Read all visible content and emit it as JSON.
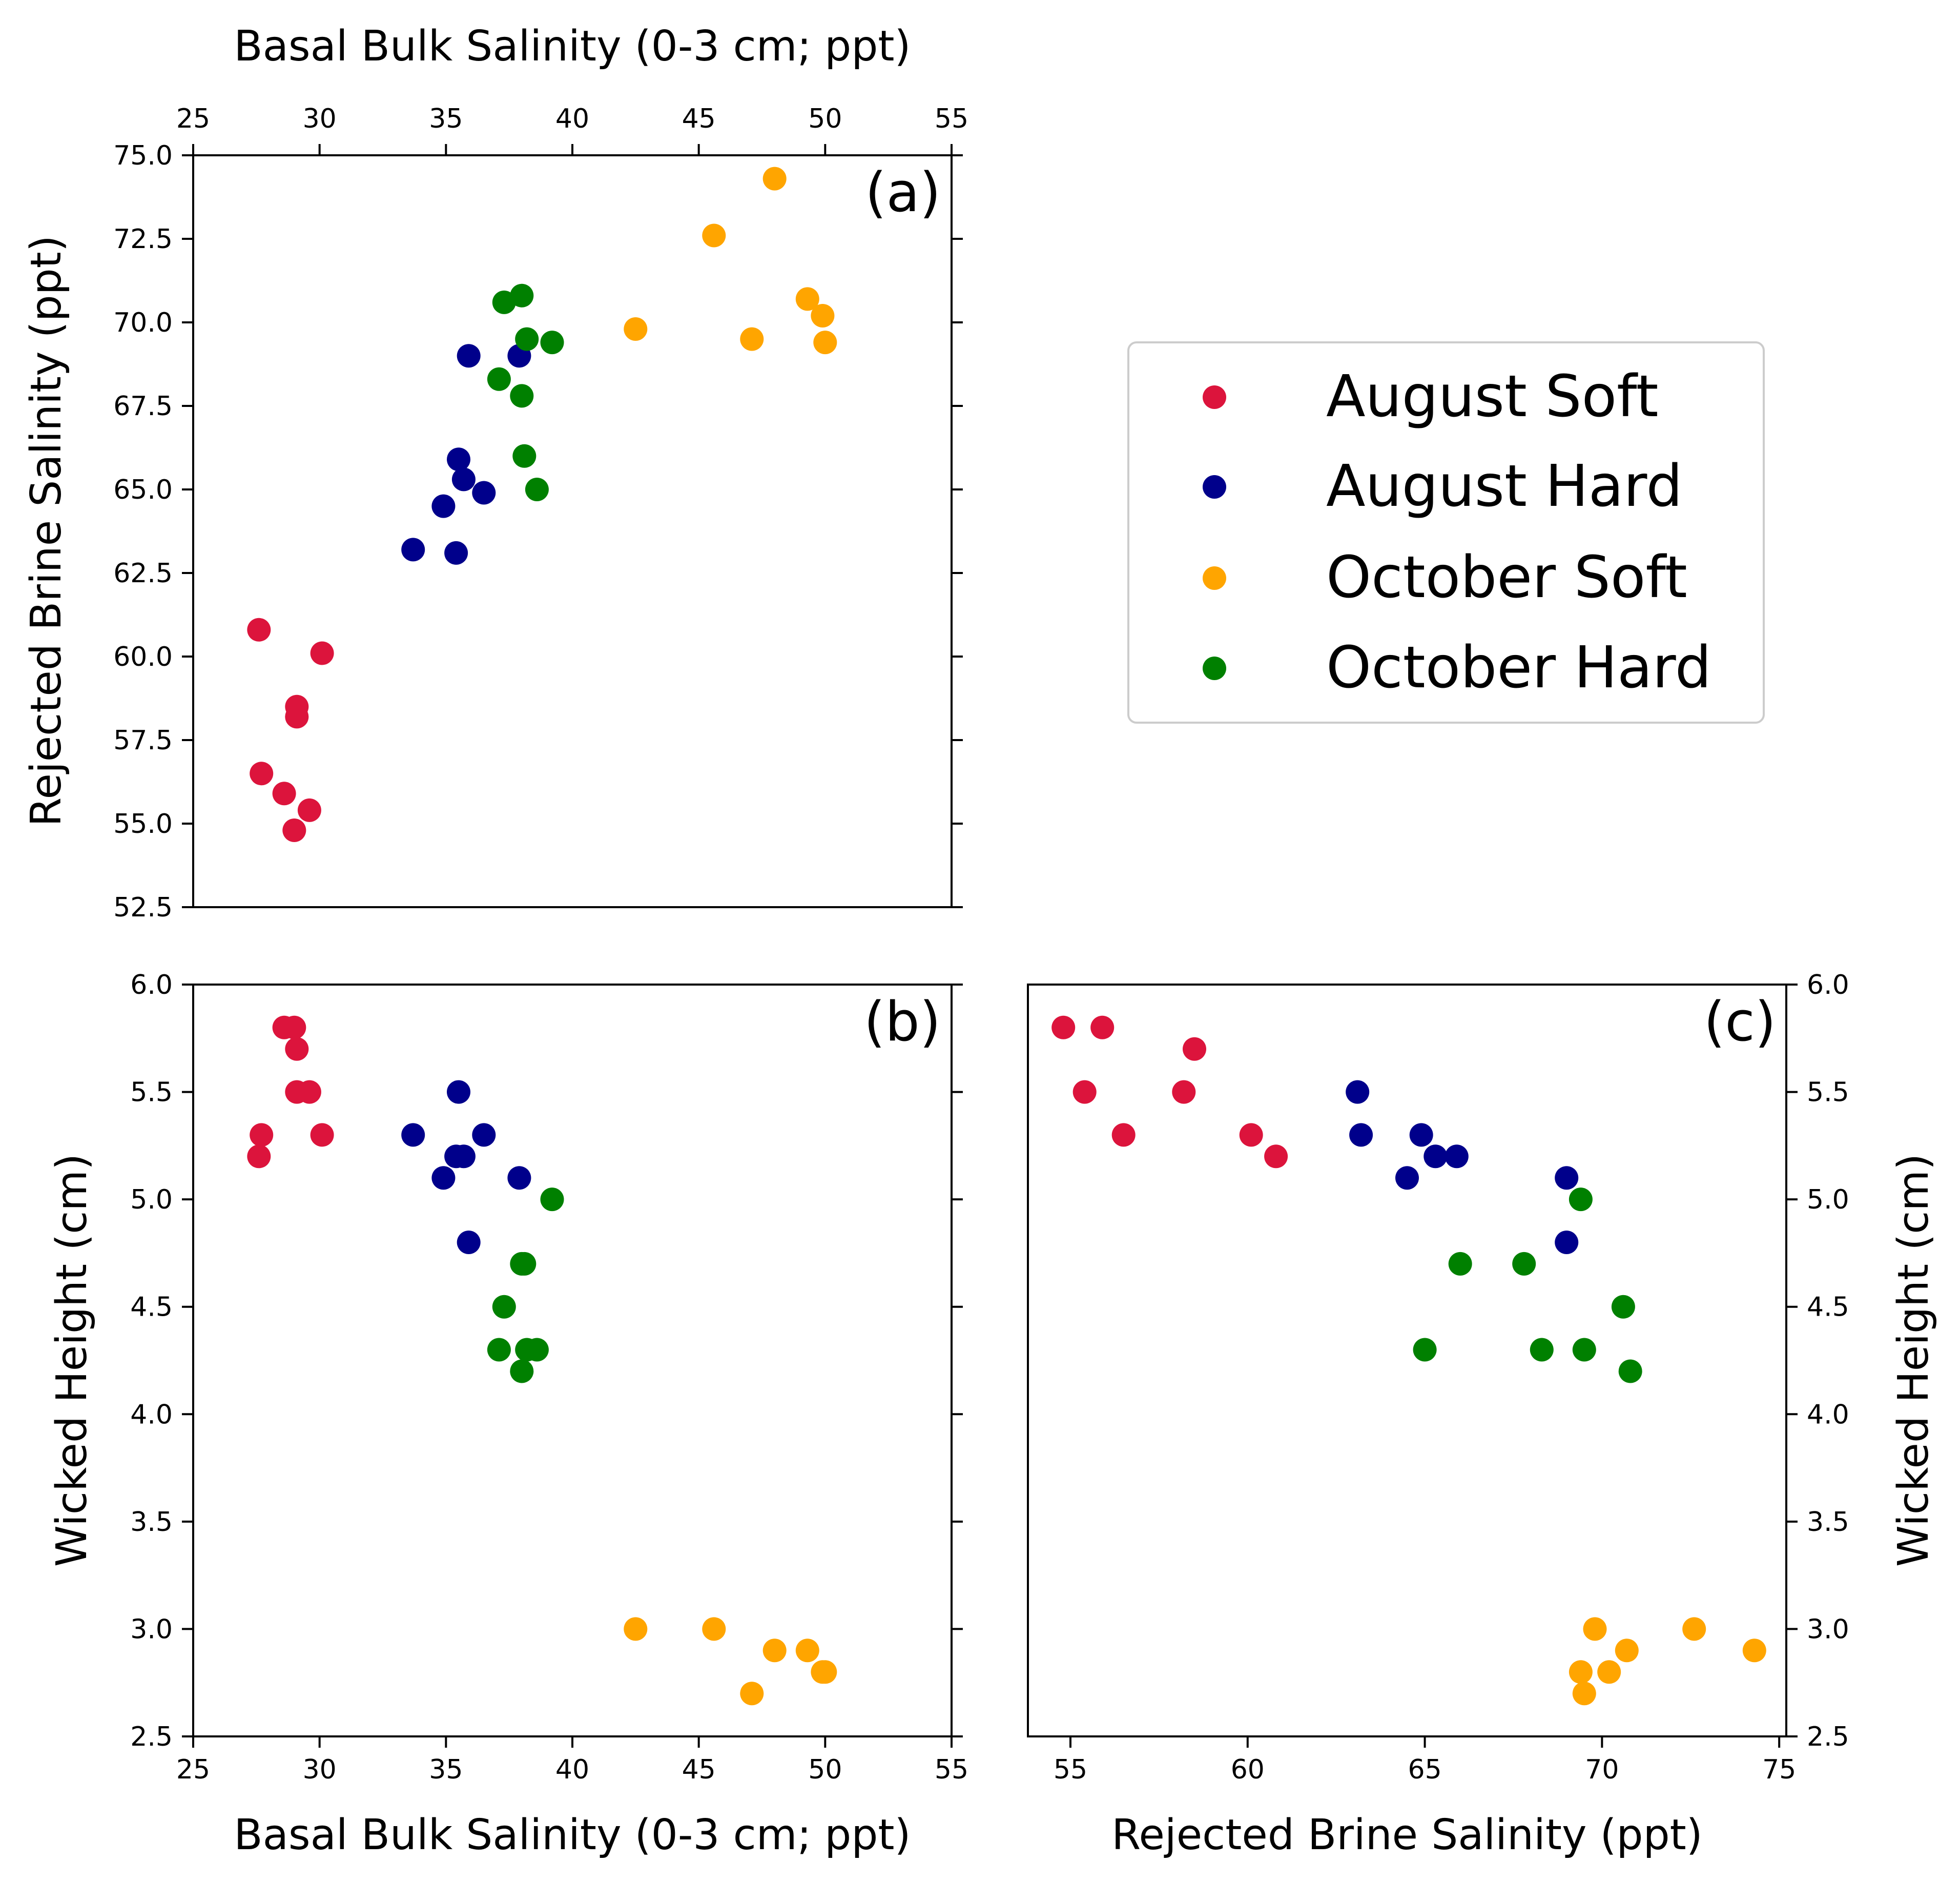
{
  "colors": {
    "August Soft": "#dc143c",
    "August Hard": "#00008b",
    "October Soft": "#ffa500",
    "October Hard": "#008000"
  },
  "legend": {
    "placement": "right of panel (a)",
    "entries": [
      "August Soft",
      "August Hard",
      "October Soft",
      "October Hard"
    ]
  },
  "chart_data": [
    {
      "panel": "(a)",
      "type": "scatter",
      "xlabel": "Basal Bulk Salinity (0-3 cm; ppt)",
      "xlabel_position": "top",
      "ylabel": "Rejected Brine Salinity (ppt)",
      "xlim": [
        25,
        55
      ],
      "ylim": [
        52.5,
        75.0
      ],
      "xticks": [
        "25",
        "30",
        "35",
        "40",
        "45",
        "50",
        "55"
      ],
      "yticks": [
        "52.5",
        "55.0",
        "57.5",
        "60.0",
        "62.5",
        "65.0",
        "67.5",
        "70.0",
        "72.5",
        "75.0"
      ],
      "grid": false,
      "series": [
        {
          "name": "August Soft",
          "x": [
            27.6,
            27.7,
            28.6,
            29.1,
            29.1,
            29.0,
            29.6,
            30.1
          ],
          "y": [
            60.8,
            56.5,
            55.9,
            58.5,
            58.2,
            54.8,
            55.4,
            60.1
          ]
        },
        {
          "name": "August Hard",
          "x": [
            33.7,
            34.9,
            35.4,
            35.5,
            35.7,
            35.9,
            36.5,
            37.9
          ],
          "y": [
            63.2,
            64.5,
            63.1,
            65.9,
            65.3,
            69.0,
            64.9,
            69.0
          ]
        },
        {
          "name": "October Soft",
          "x": [
            42.5,
            45.6,
            47.1,
            48.0,
            49.3,
            49.9,
            50.0
          ],
          "y": [
            69.8,
            72.6,
            69.5,
            74.3,
            70.7,
            70.2,
            69.4
          ]
        },
        {
          "name": "October Hard",
          "x": [
            37.1,
            37.3,
            38.0,
            38.0,
            38.1,
            38.2,
            38.6,
            39.2
          ],
          "y": [
            68.3,
            70.6,
            70.8,
            67.8,
            66.0,
            69.5,
            65.0,
            69.4
          ]
        }
      ]
    },
    {
      "panel": "(b)",
      "type": "scatter",
      "xlabel": "Basal Bulk Salinity (0-3 cm; ppt)",
      "ylabel": "Wicked Height (cm)",
      "xlim": [
        25,
        55
      ],
      "ylim": [
        2.5,
        6.0
      ],
      "xticks": [
        "25",
        "30",
        "35",
        "40",
        "45",
        "50",
        "55"
      ],
      "yticks": [
        "2.5",
        "3.0",
        "3.5",
        "4.0",
        "4.5",
        "5.0",
        "5.5",
        "6.0"
      ],
      "grid": false,
      "series": [
        {
          "name": "August Soft",
          "x": [
            27.6,
            27.7,
            28.6,
            29.0,
            29.1,
            29.1,
            29.6,
            30.1
          ],
          "y": [
            5.2,
            5.3,
            5.8,
            5.8,
            5.7,
            5.5,
            5.5,
            5.3
          ]
        },
        {
          "name": "August Hard",
          "x": [
            33.7,
            34.9,
            35.4,
            35.5,
            35.7,
            35.9,
            36.5,
            37.9
          ],
          "y": [
            5.3,
            5.1,
            5.2,
            5.5,
            5.2,
            4.8,
            5.3,
            5.1
          ]
        },
        {
          "name": "October Soft",
          "x": [
            42.5,
            45.6,
            47.1,
            48.0,
            49.3,
            49.9,
            50.0
          ],
          "y": [
            3.0,
            3.0,
            2.7,
            2.9,
            2.9,
            2.8,
            2.8
          ]
        },
        {
          "name": "October Hard",
          "x": [
            37.1,
            37.3,
            38.0,
            38.0,
            38.1,
            38.2,
            38.6,
            39.2
          ],
          "y": [
            4.3,
            4.5,
            4.7,
            4.2,
            4.7,
            4.3,
            4.3,
            5.0
          ]
        }
      ]
    },
    {
      "panel": "(c)",
      "type": "scatter",
      "xlabel": "Rejected Brine Salinity (ppt)",
      "ylabel": "Wicked Height (cm)",
      "ylabel_position": "right",
      "xlim": [
        53.8,
        75.2
      ],
      "ylim": [
        2.5,
        6.0
      ],
      "xticks": [
        "55",
        "60",
        "65",
        "70",
        "75"
      ],
      "yticks": [
        "2.5",
        "3.0",
        "3.5",
        "4.0",
        "4.5",
        "5.0",
        "5.5",
        "6.0"
      ],
      "grid": false,
      "series": [
        {
          "name": "August Soft",
          "x": [
            54.8,
            55.9,
            55.4,
            56.5,
            58.2,
            58.5,
            60.1,
            60.8
          ],
          "y": [
            5.8,
            5.8,
            5.5,
            5.3,
            5.5,
            5.7,
            5.3,
            5.2
          ]
        },
        {
          "name": "August Hard",
          "x": [
            63.1,
            63.2,
            64.5,
            64.9,
            65.3,
            65.9,
            69.0,
            69.0
          ],
          "y": [
            5.5,
            5.3,
            5.1,
            5.3,
            5.2,
            5.2,
            5.1,
            4.8
          ]
        },
        {
          "name": "October Soft",
          "x": [
            69.4,
            69.5,
            69.8,
            70.2,
            70.7,
            72.6,
            74.3
          ],
          "y": [
            2.8,
            2.7,
            3.0,
            2.8,
            2.9,
            3.0,
            2.9
          ]
        },
        {
          "name": "October Hard",
          "x": [
            65.0,
            66.0,
            67.8,
            68.3,
            69.4,
            69.5,
            70.6,
            70.8
          ],
          "y": [
            4.3,
            4.7,
            4.7,
            4.3,
            5.0,
            4.3,
            4.5,
            4.2
          ]
        }
      ]
    }
  ]
}
